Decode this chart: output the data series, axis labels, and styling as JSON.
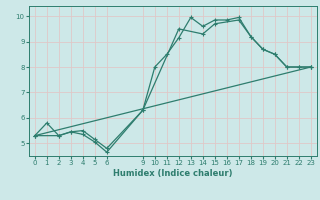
{
  "title": "",
  "xlabel": "Humidex (Indice chaleur)",
  "ylabel": "",
  "bg_color": "#cde8e8",
  "line_color": "#2e7d6e",
  "grid_color": "#e0c8c8",
  "line1_x": [
    0,
    1,
    2,
    3,
    4,
    5,
    6,
    9,
    10,
    11,
    12,
    13,
    14,
    15,
    16,
    17,
    18,
    19,
    20,
    21,
    22,
    23
  ],
  "line1_y": [
    5.3,
    5.8,
    5.3,
    5.45,
    5.5,
    5.15,
    4.8,
    6.3,
    8.0,
    8.5,
    9.15,
    9.95,
    9.6,
    9.85,
    9.85,
    9.95,
    9.2,
    8.7,
    8.5,
    8.0,
    8.0,
    8.0
  ],
  "line2_x": [
    0,
    2,
    3,
    4,
    5,
    6,
    9,
    12,
    14,
    15,
    17,
    18,
    19,
    20,
    21,
    22,
    23
  ],
  "line2_y": [
    5.3,
    5.3,
    5.45,
    5.35,
    5.05,
    4.65,
    6.3,
    9.5,
    9.3,
    9.7,
    9.85,
    9.2,
    8.7,
    8.5,
    8.0,
    8.0,
    8.0
  ],
  "line3_x": [
    0,
    23
  ],
  "line3_y": [
    5.3,
    8.0
  ],
  "xtick_positions": [
    0,
    1,
    2,
    3,
    4,
    5,
    6,
    9,
    10,
    11,
    12,
    13,
    14,
    15,
    16,
    17,
    18,
    19,
    20,
    21,
    22,
    23
  ],
  "xtick_labels": [
    "0",
    "1",
    "2",
    "3",
    "4",
    "5",
    "6",
    "9",
    "10",
    "11",
    "12",
    "13",
    "14",
    "15",
    "16",
    "17",
    "18",
    "19",
    "20",
    "21",
    "22",
    "23"
  ],
  "yticks": [
    5,
    6,
    7,
    8,
    9,
    10
  ],
  "xlim": [
    -0.5,
    23.5
  ],
  "ylim": [
    4.5,
    10.4
  ],
  "marker": "+",
  "markersize": 3,
  "linewidth": 0.9
}
